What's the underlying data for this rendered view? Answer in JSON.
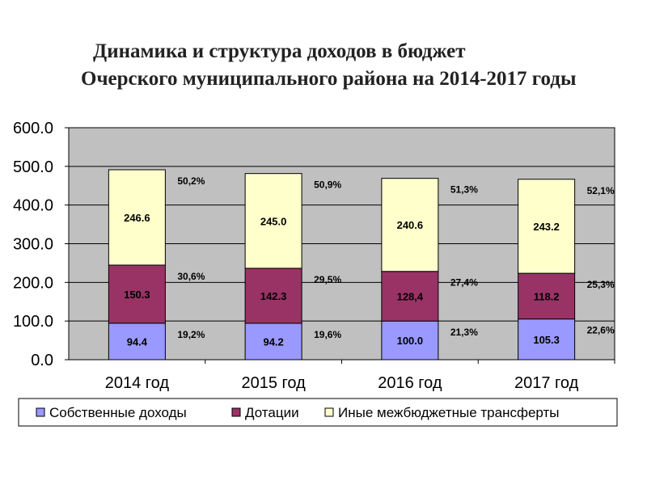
{
  "title_line1": "Динамика и структура доходов в бюджет",
  "title_line2": "Очерского муниципального района на 2014-2017 годы",
  "colors": {
    "plot_bg": "#c0c0c0",
    "own": "#9999ff",
    "grants": "#993366",
    "transfers": "#ffffcc"
  },
  "chart_data": {
    "type": "bar",
    "stacked": true,
    "categories": [
      "2014 год",
      "2015 год",
      "2016 год",
      "2017 год"
    ],
    "series": [
      {
        "name": "Собственные доходы",
        "values": [
          94.4,
          94.2,
          100.0,
          105.3
        ],
        "labels": [
          "94.4",
          "94.2",
          "100.0",
          "105.3"
        ],
        "shares": [
          "19,2%",
          "19,6%",
          "21,3%",
          "22,6%"
        ]
      },
      {
        "name": "Дотации",
        "values": [
          150.3,
          142.3,
          128.4,
          118.2
        ],
        "labels": [
          "150.3",
          "142.3",
          "128,4",
          "118.2"
        ],
        "shares": [
          "30,6%",
          "29,5%",
          "27,4%",
          "25,3%"
        ]
      },
      {
        "name": "Иные межбюджетные трансферты",
        "values": [
          246.6,
          245.0,
          240.6,
          243.2
        ],
        "labels": [
          "246.6",
          "245.0",
          "240.6",
          "243.2"
        ],
        "shares": [
          "50,2%",
          "50,9%",
          "51,3%",
          "52,1%"
        ]
      }
    ],
    "ylim": [
      0,
      600
    ],
    "yticks": [
      "0.0",
      "100.0",
      "200.0",
      "300.0",
      "400.0",
      "500.0",
      "600.0"
    ],
    "grid": true,
    "legend": "bottom"
  }
}
